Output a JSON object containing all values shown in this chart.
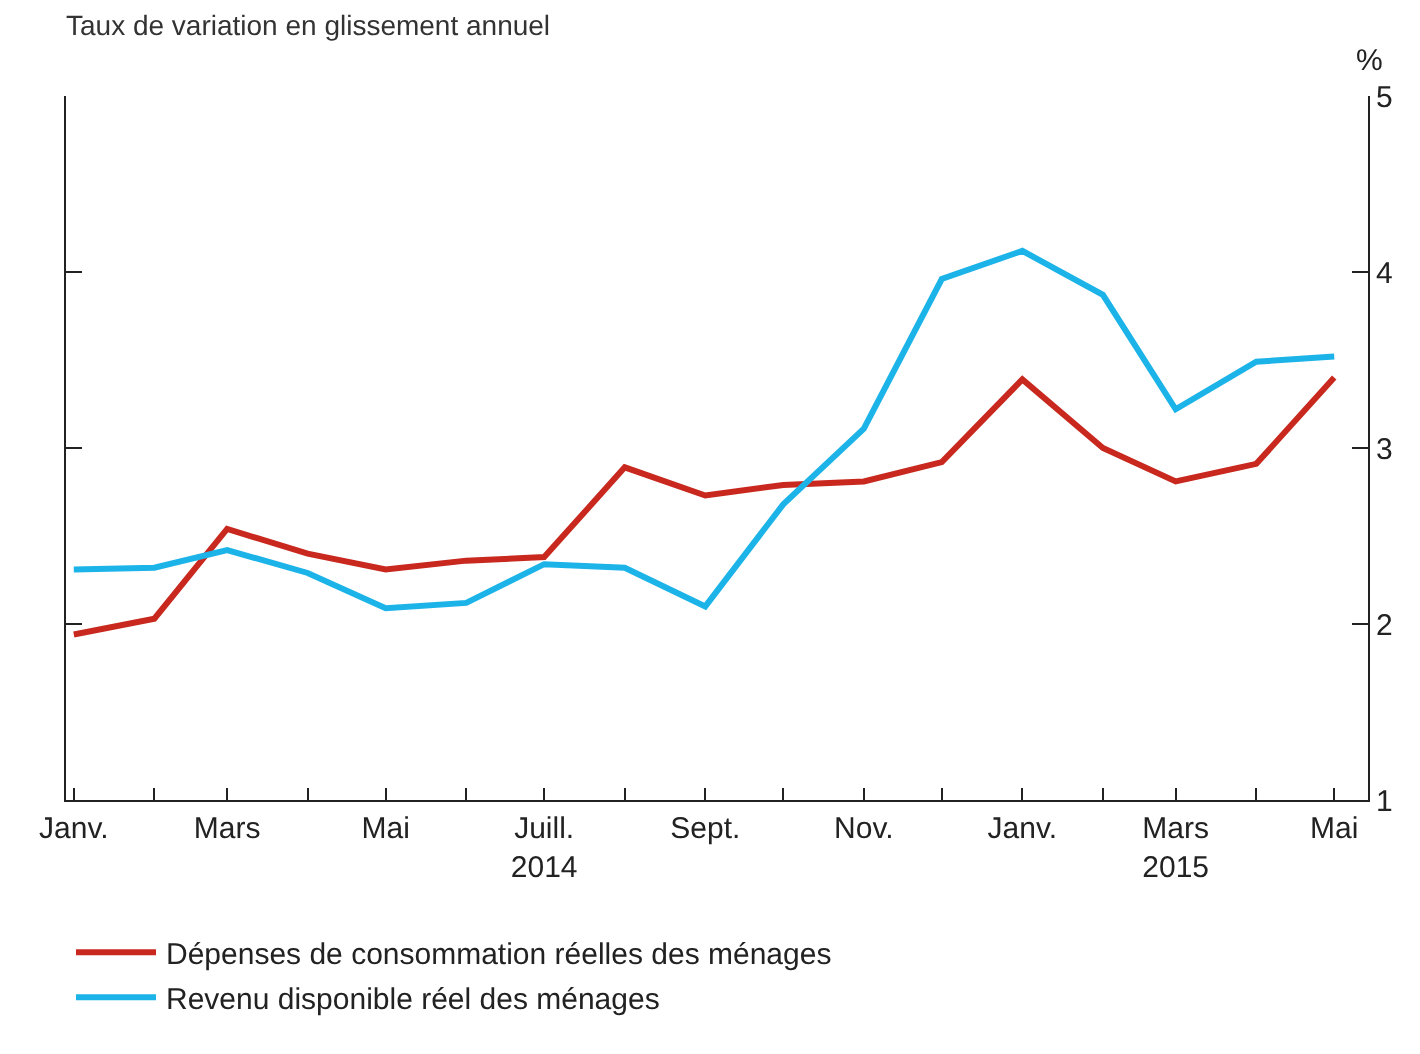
{
  "chart_data": {
    "type": "line",
    "title": "Taux de variation en glissement annuel",
    "ylabel": "%",
    "x": [
      "2014-01",
      "2014-02",
      "2014-03",
      "2014-04",
      "2014-05",
      "2014-06",
      "2014-07",
      "2014-08",
      "2014-09",
      "2014-10",
      "2014-11",
      "2014-12",
      "2015-01",
      "2015-02",
      "2015-03",
      "2015-04",
      "2015-05"
    ],
    "series": [
      {
        "name": "Dépenses de consommation réelles des ménages",
        "color": "#c8281e",
        "values": [
          1.94,
          2.03,
          2.54,
          2.4,
          2.31,
          2.36,
          2.38,
          2.89,
          2.73,
          2.79,
          2.81,
          2.92,
          3.39,
          3.0,
          2.81,
          2.91,
          3.4
        ]
      },
      {
        "name": "Revenu disponible réel des ménages",
        "color": "#1cb4e8",
        "values": [
          2.31,
          2.32,
          2.42,
          2.29,
          2.09,
          2.12,
          2.34,
          2.32,
          2.1,
          2.68,
          3.11,
          3.96,
          4.12,
          3.87,
          3.22,
          3.49,
          3.52
        ]
      }
    ],
    "xlim": [
      "2013-12-29",
      "2015-05-14"
    ],
    "xticks": [
      {
        "value": "2014-01",
        "label": "Janv."
      },
      {
        "value": "2014-02",
        "label": null
      },
      {
        "value": "2014-03",
        "label": "Mars"
      },
      {
        "value": "2014-04",
        "label": null
      },
      {
        "value": "2014-05",
        "label": "Mai"
      },
      {
        "value": "2014-06",
        "label": null
      },
      {
        "value": "2014-07",
        "label": "Juill.\n2014"
      },
      {
        "value": "2014-08",
        "label": null
      },
      {
        "value": "2014-09",
        "label": "Sept."
      },
      {
        "value": "2014-10",
        "label": null
      },
      {
        "value": "2014-11",
        "label": "Nov."
      },
      {
        "value": "2014-12",
        "label": null
      },
      {
        "value": "2015-01",
        "label": "Janv."
      },
      {
        "value": "2015-02",
        "label": null
      },
      {
        "value": "2015-03",
        "label": "Mars\n2015"
      },
      {
        "value": "2015-04",
        "label": null
      },
      {
        "value": "2015-05",
        "label": "Mai"
      }
    ],
    "ylim": [
      1,
      5
    ],
    "yticks": [
      1,
      2,
      3,
      4,
      5
    ],
    "grid": false,
    "legend": "bottom",
    "marker": "none",
    "line_style": "solid"
  }
}
